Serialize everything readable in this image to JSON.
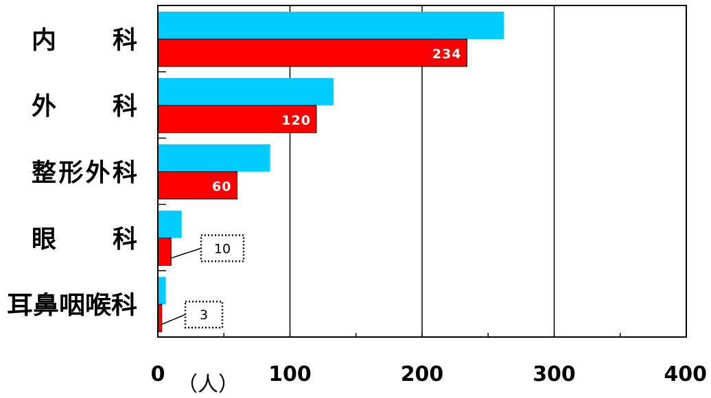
{
  "chart_data": {
    "type": "bar",
    "orientation": "horizontal",
    "categories": [
      "内　　科",
      "外　　科",
      "整形外科",
      "眼　　科",
      "耳鼻咽喉科"
    ],
    "series": [
      {
        "values": [
          262,
          133,
          85,
          18,
          6
        ],
        "color": "#00CCFF"
      },
      {
        "values": [
          234,
          120,
          60,
          10,
          3
        ],
        "color": "#FF0000"
      }
    ],
    "data_labels": [
      "234",
      "120",
      "60",
      "10",
      "3"
    ],
    "xlim": [
      0,
      400
    ],
    "xticks": [
      "0",
      "100",
      "200",
      "300",
      "400"
    ],
    "x_unit": "（人）",
    "grid": "vertical",
    "legend": "none"
  }
}
